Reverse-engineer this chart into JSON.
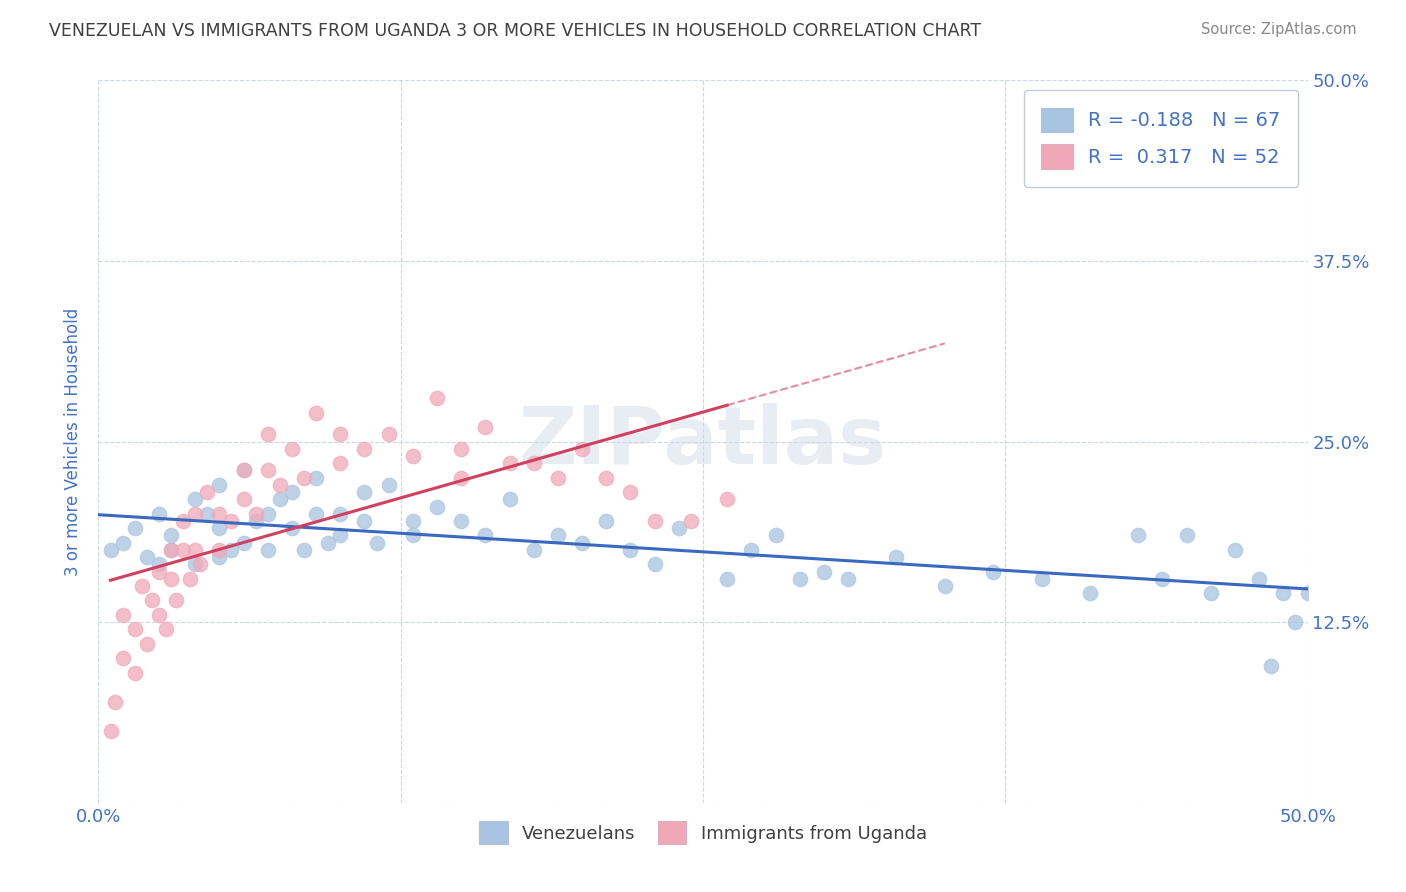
{
  "title": "VENEZUELAN VS IMMIGRANTS FROM UGANDA 3 OR MORE VEHICLES IN HOUSEHOLD CORRELATION CHART",
  "source": "Source: ZipAtlas.com",
  "ylabel": "3 or more Vehicles in Household",
  "xlim": [
    0.0,
    0.5
  ],
  "ylim": [
    0.0,
    0.5
  ],
  "watermark": "ZIPatlas",
  "blue_R": -0.188,
  "blue_N": 67,
  "pink_R": 0.317,
  "pink_N": 52,
  "blue_color": "#a8c4e0",
  "pink_color": "#f0a8b8",
  "blue_line_color": "#3a6abf",
  "pink_line_color": "#d04060",
  "bg_color": "#ffffff",
  "grid_color": "#c8d8e8",
  "title_color": "#404040",
  "axis_label_color": "#4472c4",
  "tick_label_color": "#4472c4",
  "blue_scatter_x": [
    0.005,
    0.01,
    0.015,
    0.02,
    0.025,
    0.025,
    0.03,
    0.03,
    0.04,
    0.04,
    0.045,
    0.05,
    0.05,
    0.05,
    0.055,
    0.06,
    0.06,
    0.065,
    0.07,
    0.07,
    0.075,
    0.08,
    0.08,
    0.085,
    0.09,
    0.09,
    0.095,
    0.1,
    0.1,
    0.11,
    0.11,
    0.115,
    0.12,
    0.13,
    0.13,
    0.14,
    0.15,
    0.16,
    0.17,
    0.18,
    0.19,
    0.2,
    0.21,
    0.22,
    0.23,
    0.24,
    0.26,
    0.27,
    0.28,
    0.29,
    0.3,
    0.31,
    0.33,
    0.35,
    0.37,
    0.39,
    0.41,
    0.43,
    0.44,
    0.45,
    0.46,
    0.47,
    0.48,
    0.485,
    0.49,
    0.495,
    0.5
  ],
  "blue_scatter_y": [
    0.175,
    0.18,
    0.19,
    0.17,
    0.2,
    0.165,
    0.185,
    0.175,
    0.21,
    0.165,
    0.2,
    0.19,
    0.22,
    0.17,
    0.175,
    0.23,
    0.18,
    0.195,
    0.2,
    0.175,
    0.21,
    0.19,
    0.215,
    0.175,
    0.2,
    0.225,
    0.18,
    0.2,
    0.185,
    0.195,
    0.215,
    0.18,
    0.22,
    0.195,
    0.185,
    0.205,
    0.195,
    0.185,
    0.21,
    0.175,
    0.185,
    0.18,
    0.195,
    0.175,
    0.165,
    0.19,
    0.155,
    0.175,
    0.185,
    0.155,
    0.16,
    0.155,
    0.17,
    0.15,
    0.16,
    0.155,
    0.145,
    0.185,
    0.155,
    0.185,
    0.145,
    0.175,
    0.155,
    0.095,
    0.145,
    0.125,
    0.145
  ],
  "pink_scatter_x": [
    0.005,
    0.007,
    0.01,
    0.01,
    0.015,
    0.015,
    0.018,
    0.02,
    0.022,
    0.025,
    0.025,
    0.028,
    0.03,
    0.03,
    0.032,
    0.035,
    0.035,
    0.038,
    0.04,
    0.04,
    0.042,
    0.045,
    0.05,
    0.05,
    0.055,
    0.06,
    0.06,
    0.065,
    0.07,
    0.07,
    0.075,
    0.08,
    0.085,
    0.09,
    0.1,
    0.1,
    0.11,
    0.12,
    0.13,
    0.14,
    0.15,
    0.15,
    0.16,
    0.17,
    0.18,
    0.19,
    0.2,
    0.21,
    0.22,
    0.23,
    0.245,
    0.26
  ],
  "pink_scatter_y": [
    0.05,
    0.07,
    0.1,
    0.13,
    0.09,
    0.12,
    0.15,
    0.11,
    0.14,
    0.13,
    0.16,
    0.12,
    0.155,
    0.175,
    0.14,
    0.175,
    0.195,
    0.155,
    0.175,
    0.2,
    0.165,
    0.215,
    0.175,
    0.2,
    0.195,
    0.21,
    0.23,
    0.2,
    0.23,
    0.255,
    0.22,
    0.245,
    0.225,
    0.27,
    0.235,
    0.255,
    0.245,
    0.255,
    0.24,
    0.28,
    0.245,
    0.225,
    0.26,
    0.235,
    0.235,
    0.225,
    0.245,
    0.225,
    0.215,
    0.195,
    0.195,
    0.21
  ],
  "legend_r_labels": [
    "R = -0.188",
    "R =  0.317"
  ],
  "legend_n_labels": [
    "N = 67",
    "N = 52"
  ],
  "legend_bottom_labels": [
    "Venezuelans",
    "Immigrants from Uganda"
  ]
}
